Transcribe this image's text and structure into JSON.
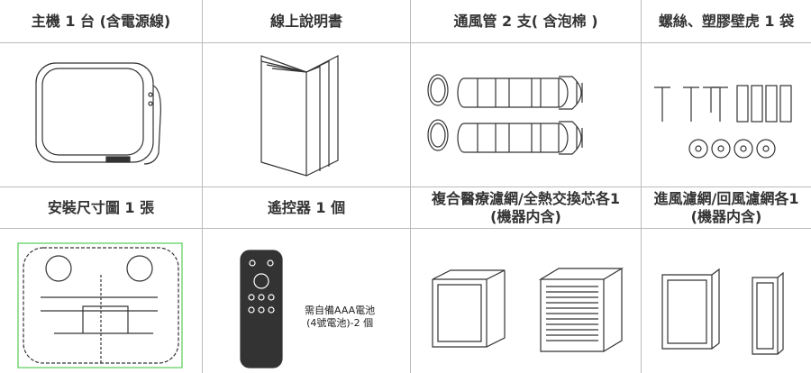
{
  "table": {
    "rows": [
      [
        [
          "主機 1 台 (含電源線)"
        ],
        [
          "線上說明書"
        ],
        [
          "通風管 2 支( 含泡棉 )"
        ],
        [
          "螺絲、塑膠壁虎 1 袋"
        ]
      ],
      [
        [
          "安裝尺寸圖 1 張"
        ],
        [
          "遙控器 1 個"
        ],
        [
          "複合醫療濾網/全熱交換芯各1",
          "(機器内含)"
        ],
        [
          "進風濾網/回風濾網各1",
          "(機器内含)"
        ]
      ]
    ]
  },
  "remote_note": [
    "需自備AAA電池",
    "(4號電池)-2 個"
  ]
}
